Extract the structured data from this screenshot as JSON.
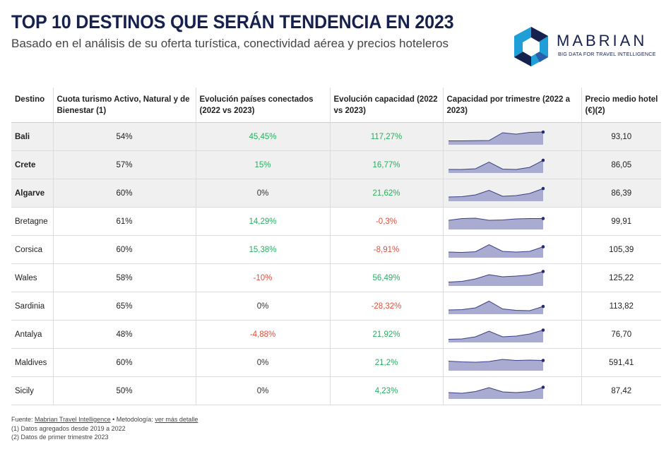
{
  "header": {
    "title": "TOP 10 DESTINOS QUE SERÁN TENDENCIA EN 2023",
    "subtitle": "Basado en el análisis de su oferta turística, conectividad aérea y precios hoteleros"
  },
  "logo": {
    "name": "MABRIAN",
    "tagline": "BIG DATA FOR TRAVEL INTELLIGENCE",
    "color": "#16214d",
    "accent": "#1f9ed8"
  },
  "chart_data": {
    "type": "table",
    "columns": [
      "Destino",
      "Cuota turismo Activo, Natural y de Bienestar (1)",
      "Evolución países conectados (2022 vs 2023)",
      "Evolución capacidad (2022 vs 2023)",
      "Capacidad por trimestre (2022 a 2023)",
      "Precio medio hotel (€)(2)"
    ],
    "rows": [
      {
        "destino": "Bali",
        "cuota": "54%",
        "paises": "45,45%",
        "capacidad": "117,27%",
        "precio": "93,10",
        "highlight": true,
        "spark": [
          0.55,
          0.55,
          0.58,
          0.6,
          1.7,
          1.5,
          1.75,
          1.8
        ]
      },
      {
        "destino": "Crete",
        "cuota": "57%",
        "paises": "15%",
        "capacidad": "16,77%",
        "precio": "86,05",
        "highlight": true,
        "spark": [
          0.5,
          0.5,
          0.6,
          1.55,
          0.55,
          0.5,
          0.8,
          1.8
        ]
      },
      {
        "destino": "Algarve",
        "cuota": "60%",
        "paises": "0%",
        "capacidad": "21,62%",
        "precio": "86,39",
        "highlight": true,
        "spark": [
          0.6,
          0.65,
          0.9,
          1.55,
          0.7,
          0.8,
          1.1,
          1.8
        ]
      },
      {
        "destino": "Bretagne",
        "cuota": "61%",
        "paises": "14,29%",
        "capacidad": "-0,3%",
        "precio": "99,91",
        "highlight": false,
        "spark": [
          1.3,
          1.55,
          1.6,
          1.3,
          1.35,
          1.5,
          1.55,
          1.55
        ]
      },
      {
        "destino": "Corsica",
        "cuota": "60%",
        "paises": "15,38%",
        "capacidad": "-8,91%",
        "precio": "105,39",
        "highlight": false,
        "spark": [
          0.8,
          0.75,
          0.85,
          1.85,
          0.9,
          0.8,
          0.9,
          1.55
        ]
      },
      {
        "destino": "Wales",
        "cuota": "58%",
        "paises": "-10%",
        "capacidad": "56,49%",
        "precio": "125,22",
        "highlight": false,
        "spark": [
          0.55,
          0.65,
          1.0,
          1.6,
          1.3,
          1.4,
          1.55,
          2.05
        ]
      },
      {
        "destino": "Sardinia",
        "cuota": "65%",
        "paises": "0%",
        "capacidad": "-28,32%",
        "precio": "113,82",
        "highlight": false,
        "spark": [
          0.6,
          0.65,
          0.9,
          1.85,
          0.75,
          0.55,
          0.5,
          1.1
        ]
      },
      {
        "destino": "Antalya",
        "cuota": "48%",
        "paises": "-4,88%",
        "capacidad": "21,92%",
        "precio": "76,70",
        "highlight": false,
        "spark": [
          0.45,
          0.5,
          0.8,
          1.6,
          0.8,
          0.9,
          1.2,
          1.75
        ]
      },
      {
        "destino": "Maldives",
        "cuota": "60%",
        "paises": "0%",
        "capacidad": "21,2%",
        "precio": "591,41",
        "highlight": false,
        "spark": [
          1.35,
          1.25,
          1.2,
          1.3,
          1.6,
          1.45,
          1.5,
          1.45
        ]
      },
      {
        "destino": "Sicily",
        "cuota": "50%",
        "paises": "0%",
        "capacidad": "4,23%",
        "precio": "87,42",
        "highlight": false,
        "spark": [
          0.9,
          0.8,
          1.05,
          1.6,
          1.0,
          0.9,
          1.05,
          1.65
        ]
      }
    ],
    "spark_colors": {
      "fill": "#a9acd0",
      "line": "#3b3f86",
      "dot": "#262a6e"
    }
  },
  "footer": {
    "source_prefix": "Fuente:",
    "source_link": "Mabrian Travel Intelligence",
    "method_prefix": "• Metodología:",
    "method_link": "ver más detalle",
    "note1": "(1) Datos agregados desde 2019 a 2022",
    "note2": "(2) Datos de primer trimestre 2023"
  }
}
